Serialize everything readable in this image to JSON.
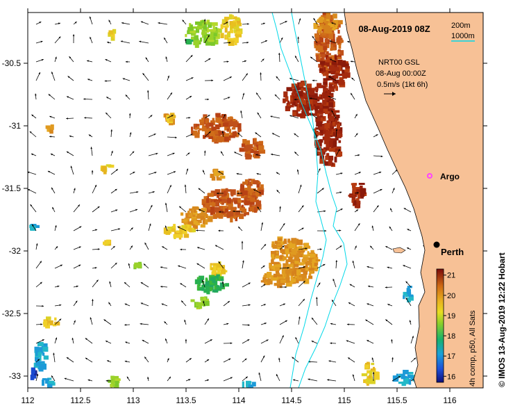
{
  "map": {
    "title": "08-Aug-2019 08Z",
    "isobath_legend": [
      "200m",
      "1000m"
    ],
    "current_product": {
      "line1": "NRT00 GSL",
      "line2": "08-Aug 00:00Z",
      "line3": "0.5m/s (1kt 6h)"
    },
    "x_ticks": [
      "112",
      "112.5",
      "113",
      "113.5",
      "114",
      "114.5",
      "115",
      "115.5",
      "116"
    ],
    "y_ticks": [
      "-30.5",
      "-31",
      "-31.5",
      "-32",
      "-32.5",
      "-33"
    ],
    "places": [
      {
        "name": "Argo",
        "lon": 115.8,
        "lat": -31.42,
        "marker": "circle-magenta"
      },
      {
        "name": "Perth",
        "lon": 115.86,
        "lat": -31.95,
        "marker": "dot-black"
      }
    ],
    "colorbar": {
      "ticks": [
        "21",
        "20",
        "19",
        "18",
        "17",
        "16"
      ],
      "range": [
        15.7,
        21.3
      ],
      "label": "4h comp, p50, All Sats"
    },
    "credit": "© IMOS 13-Aug-2019 12:22 Hobart",
    "colors": {
      "land": "#f7c196",
      "isobath": "#00d8e8",
      "argo": "#ff44ff"
    }
  }
}
